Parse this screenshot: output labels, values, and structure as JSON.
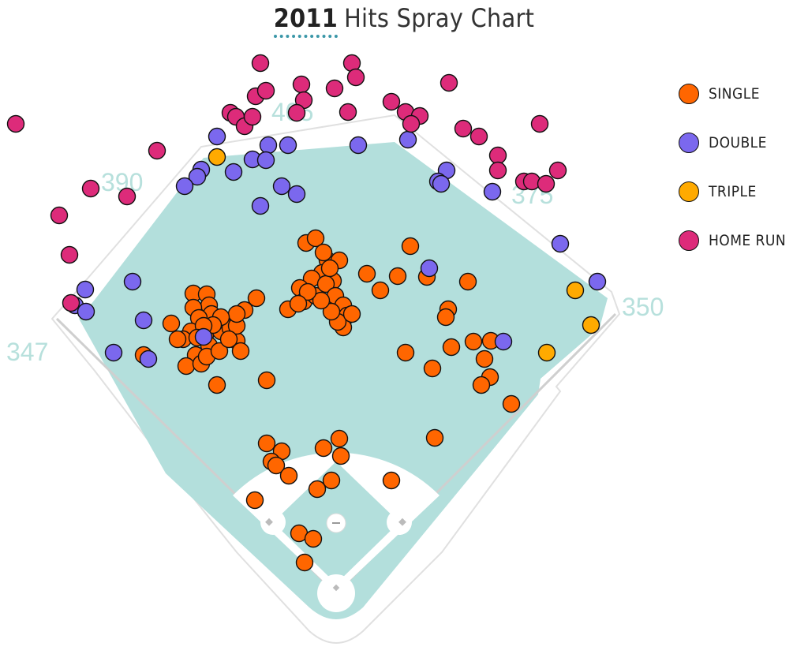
{
  "title": {
    "year": "2011",
    "rest": "Hits Spray Chart"
  },
  "distances": {
    "left_line": "347",
    "left_center": "390",
    "center": "405",
    "right_center": "375",
    "right_line": "350"
  },
  "colors": {
    "field": "#b3dfdc",
    "infield_dirt": "#ffffff",
    "single": "#ff6600",
    "double": "#7b68ee",
    "triple": "#ffaa00",
    "home_run": "#dd2b7a"
  },
  "chart_data": {
    "type": "scatter",
    "title": "2011 Hits Spray Chart",
    "legend_position": "top-right",
    "series": [
      {
        "name": "SINGLE",
        "color": "#ff6600",
        "points": [
          [
            388,
            308
          ],
          [
            400,
            302
          ],
          [
            415,
            330
          ],
          [
            430,
            330
          ],
          [
            422,
            356
          ],
          [
            408,
            346
          ],
          [
            395,
            353
          ],
          [
            380,
            365
          ],
          [
            385,
            382
          ],
          [
            365,
            392
          ],
          [
            400,
            375
          ],
          [
            413,
            360
          ],
          [
            425,
            375
          ],
          [
            435,
            387
          ],
          [
            440,
            400
          ],
          [
            435,
            415
          ],
          [
            428,
            408
          ],
          [
            420,
            395
          ],
          [
            407,
            381
          ],
          [
            390,
            370
          ],
          [
            378,
            385
          ],
          [
            446,
            398
          ],
          [
            410,
            320
          ],
          [
            418,
            340
          ],
          [
            520,
            312
          ],
          [
            504,
            350
          ],
          [
            465,
            347
          ],
          [
            482,
            368
          ],
          [
            541,
            351
          ],
          [
            593,
            357
          ],
          [
            568,
            392
          ],
          [
            565,
            402
          ],
          [
            514,
            447
          ],
          [
            548,
            467
          ],
          [
            572,
            440
          ],
          [
            600,
            433
          ],
          [
            614,
            455
          ],
          [
            621,
            478
          ],
          [
            610,
            488
          ],
          [
            622,
            432
          ],
          [
            648,
            512
          ],
          [
            245,
            372
          ],
          [
            262,
            373
          ],
          [
            265,
            387
          ],
          [
            268,
            398
          ],
          [
            245,
            390
          ],
          [
            252,
            403
          ],
          [
            242,
            420
          ],
          [
            232,
            430
          ],
          [
            225,
            430
          ],
          [
            217,
            410
          ],
          [
            260,
            425
          ],
          [
            265,
            438
          ],
          [
            280,
            420
          ],
          [
            288,
            408
          ],
          [
            292,
            416
          ],
          [
            300,
            432
          ],
          [
            305,
            445
          ],
          [
            300,
            413
          ],
          [
            310,
            393
          ],
          [
            325,
            378
          ],
          [
            300,
            398
          ],
          [
            280,
            402
          ],
          [
            270,
            412
          ],
          [
            258,
            413
          ],
          [
            248,
            450
          ],
          [
            236,
            464
          ],
          [
            255,
            461
          ],
          [
            262,
            452
          ],
          [
            275,
            488
          ],
          [
            338,
            482
          ],
          [
            182,
            450
          ],
          [
            278,
            445
          ],
          [
            290,
            430
          ],
          [
            250,
            428
          ],
          [
            338,
            562
          ],
          [
            357,
            572
          ],
          [
            344,
            585
          ],
          [
            350,
            590
          ],
          [
            366,
            603
          ],
          [
            410,
            568
          ],
          [
            430,
            556
          ],
          [
            432,
            578
          ],
          [
            420,
            609
          ],
          [
            402,
            620
          ],
          [
            323,
            634
          ],
          [
            496,
            609
          ],
          [
            551,
            555
          ],
          [
            379,
            676
          ],
          [
            397,
            683
          ],
          [
            386,
            713
          ]
        ]
      },
      {
        "name": "DOUBLE",
        "color": "#7b68ee",
        "points": [
          [
            275,
            173
          ],
          [
            255,
            215
          ],
          [
            250,
            224
          ],
          [
            234,
            236
          ],
          [
            296,
            218
          ],
          [
            320,
            202
          ],
          [
            340,
            184
          ],
          [
            365,
            184
          ],
          [
            337,
            203
          ],
          [
            357,
            236
          ],
          [
            376,
            246
          ],
          [
            330,
            261
          ],
          [
            454,
            184
          ],
          [
            517,
            177
          ],
          [
            566,
            216
          ],
          [
            555,
            230
          ],
          [
            559,
            233
          ],
          [
            624,
            243
          ],
          [
            710,
            309
          ],
          [
            757,
            357
          ],
          [
            544,
            340
          ],
          [
            638,
            433
          ],
          [
            168,
            357
          ],
          [
            108,
            367
          ],
          [
            95,
            387
          ],
          [
            109,
            395
          ],
          [
            182,
            406
          ],
          [
            144,
            447
          ],
          [
            188,
            455
          ],
          [
            258,
            427
          ]
        ]
      },
      {
        "name": "TRIPLE",
        "color": "#ffaa00",
        "points": [
          [
            275,
            199
          ],
          [
            729,
            368
          ],
          [
            749,
            412
          ],
          [
            693,
            447
          ]
        ]
      },
      {
        "name": "HOME RUN",
        "color": "#dd2b7a",
        "points": [
          [
            20,
            157
          ],
          [
            115,
            239
          ],
          [
            75,
            273
          ],
          [
            88,
            323
          ],
          [
            90,
            384
          ],
          [
            199,
            191
          ],
          [
            161,
            249
          ],
          [
            292,
            143
          ],
          [
            299,
            148
          ],
          [
            310,
            160
          ],
          [
            320,
            148
          ],
          [
            324,
            122
          ],
          [
            337,
            115
          ],
          [
            330,
            80
          ],
          [
            382,
            107
          ],
          [
            385,
            127
          ],
          [
            376,
            143
          ],
          [
            424,
            112
          ],
          [
            446,
            80
          ],
          [
            451,
            98
          ],
          [
            441,
            142
          ],
          [
            496,
            129
          ],
          [
            514,
            142
          ],
          [
            532,
            147
          ],
          [
            521,
            157
          ],
          [
            569,
            105
          ],
          [
            587,
            163
          ],
          [
            607,
            173
          ],
          [
            631,
            197
          ],
          [
            631,
            216
          ],
          [
            664,
            230
          ],
          [
            674,
            230
          ],
          [
            692,
            233
          ],
          [
            707,
            216
          ],
          [
            684,
            157
          ]
        ]
      }
    ]
  },
  "legend": [
    {
      "label": "SINGLE",
      "color": "#ff6600"
    },
    {
      "label": "DOUBLE",
      "color": "#7b68ee"
    },
    {
      "label": "TRIPLE",
      "color": "#ffaa00"
    },
    {
      "label": "HOME RUN",
      "color": "#dd2b7a"
    }
  ]
}
